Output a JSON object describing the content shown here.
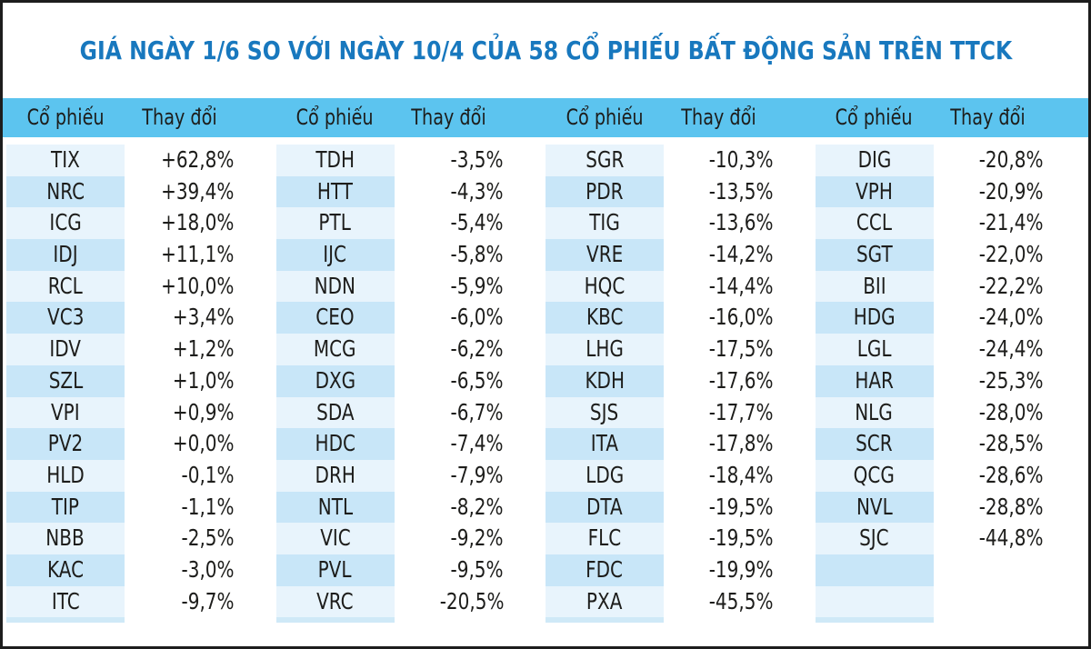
{
  "title": "GIÁ NGÀY 1/6 SO VỚI NGÀY 10/4 CỦA 58 CỔ PHIẾU BẤT ĐỘNG SẢN TRÊN TTCK",
  "colors": {
    "title_text": "#1878be",
    "header_bg": "#5cc4ef",
    "stripe_light": "#e8f4fc",
    "stripe_dark": "#c8e6f8",
    "body_text": "#1d1d1b",
    "frame_border": "#1d1d1d"
  },
  "chart_data": {
    "type": "table",
    "title": "GIÁ NGÀY 1/6 SO VỚI NGÀY 10/4 CỦA 58 CỔ PHIẾU BẤT ĐỘNG SẢN TRÊN TTCK",
    "column_headers": [
      "Cổ phiếu",
      "Thay đổi"
    ],
    "layout": {
      "column_groups": 4,
      "rows_per_group": 15,
      "legend": "off",
      "grid": "striped-stock-column"
    },
    "groups": [
      [
        [
          "TIX",
          "+62,8%"
        ],
        [
          "NRC",
          "+39,4%"
        ],
        [
          "ICG",
          "+18,0%"
        ],
        [
          "IDJ",
          "+11,1%"
        ],
        [
          "RCL",
          "+10,0%"
        ],
        [
          "VC3",
          "+3,4%"
        ],
        [
          "IDV",
          "+1,2%"
        ],
        [
          "SZL",
          "+1,0%"
        ],
        [
          "VPI",
          "+0,9%"
        ],
        [
          "PV2",
          "+0,0%"
        ],
        [
          "HLD",
          "-0,1%"
        ],
        [
          "TIP",
          "-1,1%"
        ],
        [
          "NBB",
          "-2,5%"
        ],
        [
          "KAC",
          "-3,0%"
        ],
        [
          "ITC",
          "-9,7%"
        ]
      ],
      [
        [
          "TDH",
          "-3,5%"
        ],
        [
          "HTT",
          "-4,3%"
        ],
        [
          "PTL",
          "-5,4%"
        ],
        [
          "IJC",
          "-5,8%"
        ],
        [
          "NDN",
          "-5,9%"
        ],
        [
          "CEO",
          "-6,0%"
        ],
        [
          "MCG",
          "-6,2%"
        ],
        [
          "DXG",
          "-6,5%"
        ],
        [
          "SDA",
          "-6,7%"
        ],
        [
          "HDC",
          "-7,4%"
        ],
        [
          "DRH",
          "-7,9%"
        ],
        [
          "NTL",
          "-8,2%"
        ],
        [
          "VIC",
          "-9,2%"
        ],
        [
          "PVL",
          "-9,5%"
        ],
        [
          "VRC",
          "-20,5%"
        ]
      ],
      [
        [
          "SGR",
          "-10,3%"
        ],
        [
          "PDR",
          "-13,5%"
        ],
        [
          "TIG",
          "-13,6%"
        ],
        [
          "VRE",
          "-14,2%"
        ],
        [
          "HQC",
          "-14,4%"
        ],
        [
          "KBC",
          "-16,0%"
        ],
        [
          "LHG",
          "-17,5%"
        ],
        [
          "KDH",
          "-17,6%"
        ],
        [
          "SJS",
          "-17,7%"
        ],
        [
          "ITA",
          "-17,8%"
        ],
        [
          "LDG",
          "-18,4%"
        ],
        [
          "DTA",
          "-19,5%"
        ],
        [
          "FLC",
          "-19,5%"
        ],
        [
          "FDC",
          "-19,9%"
        ],
        [
          "PXA",
          "-45,5%"
        ]
      ],
      [
        [
          "DIG",
          "-20,8%"
        ],
        [
          "VPH",
          "-20,9%"
        ],
        [
          "CCL",
          "-21,4%"
        ],
        [
          "SGT",
          "-22,0%"
        ],
        [
          "BII",
          "-22,2%"
        ],
        [
          "HDG",
          "-24,0%"
        ],
        [
          "LGL",
          "-24,4%"
        ],
        [
          "HAR",
          "-25,3%"
        ],
        [
          "NLG",
          "-28,0%"
        ],
        [
          "SCR",
          "-28,5%"
        ],
        [
          "QCG",
          "-28,6%"
        ],
        [
          "NVL",
          "-28,8%"
        ],
        [
          "SJC",
          "-44,8%"
        ],
        [
          "",
          ""
        ],
        [
          "",
          ""
        ]
      ]
    ]
  }
}
